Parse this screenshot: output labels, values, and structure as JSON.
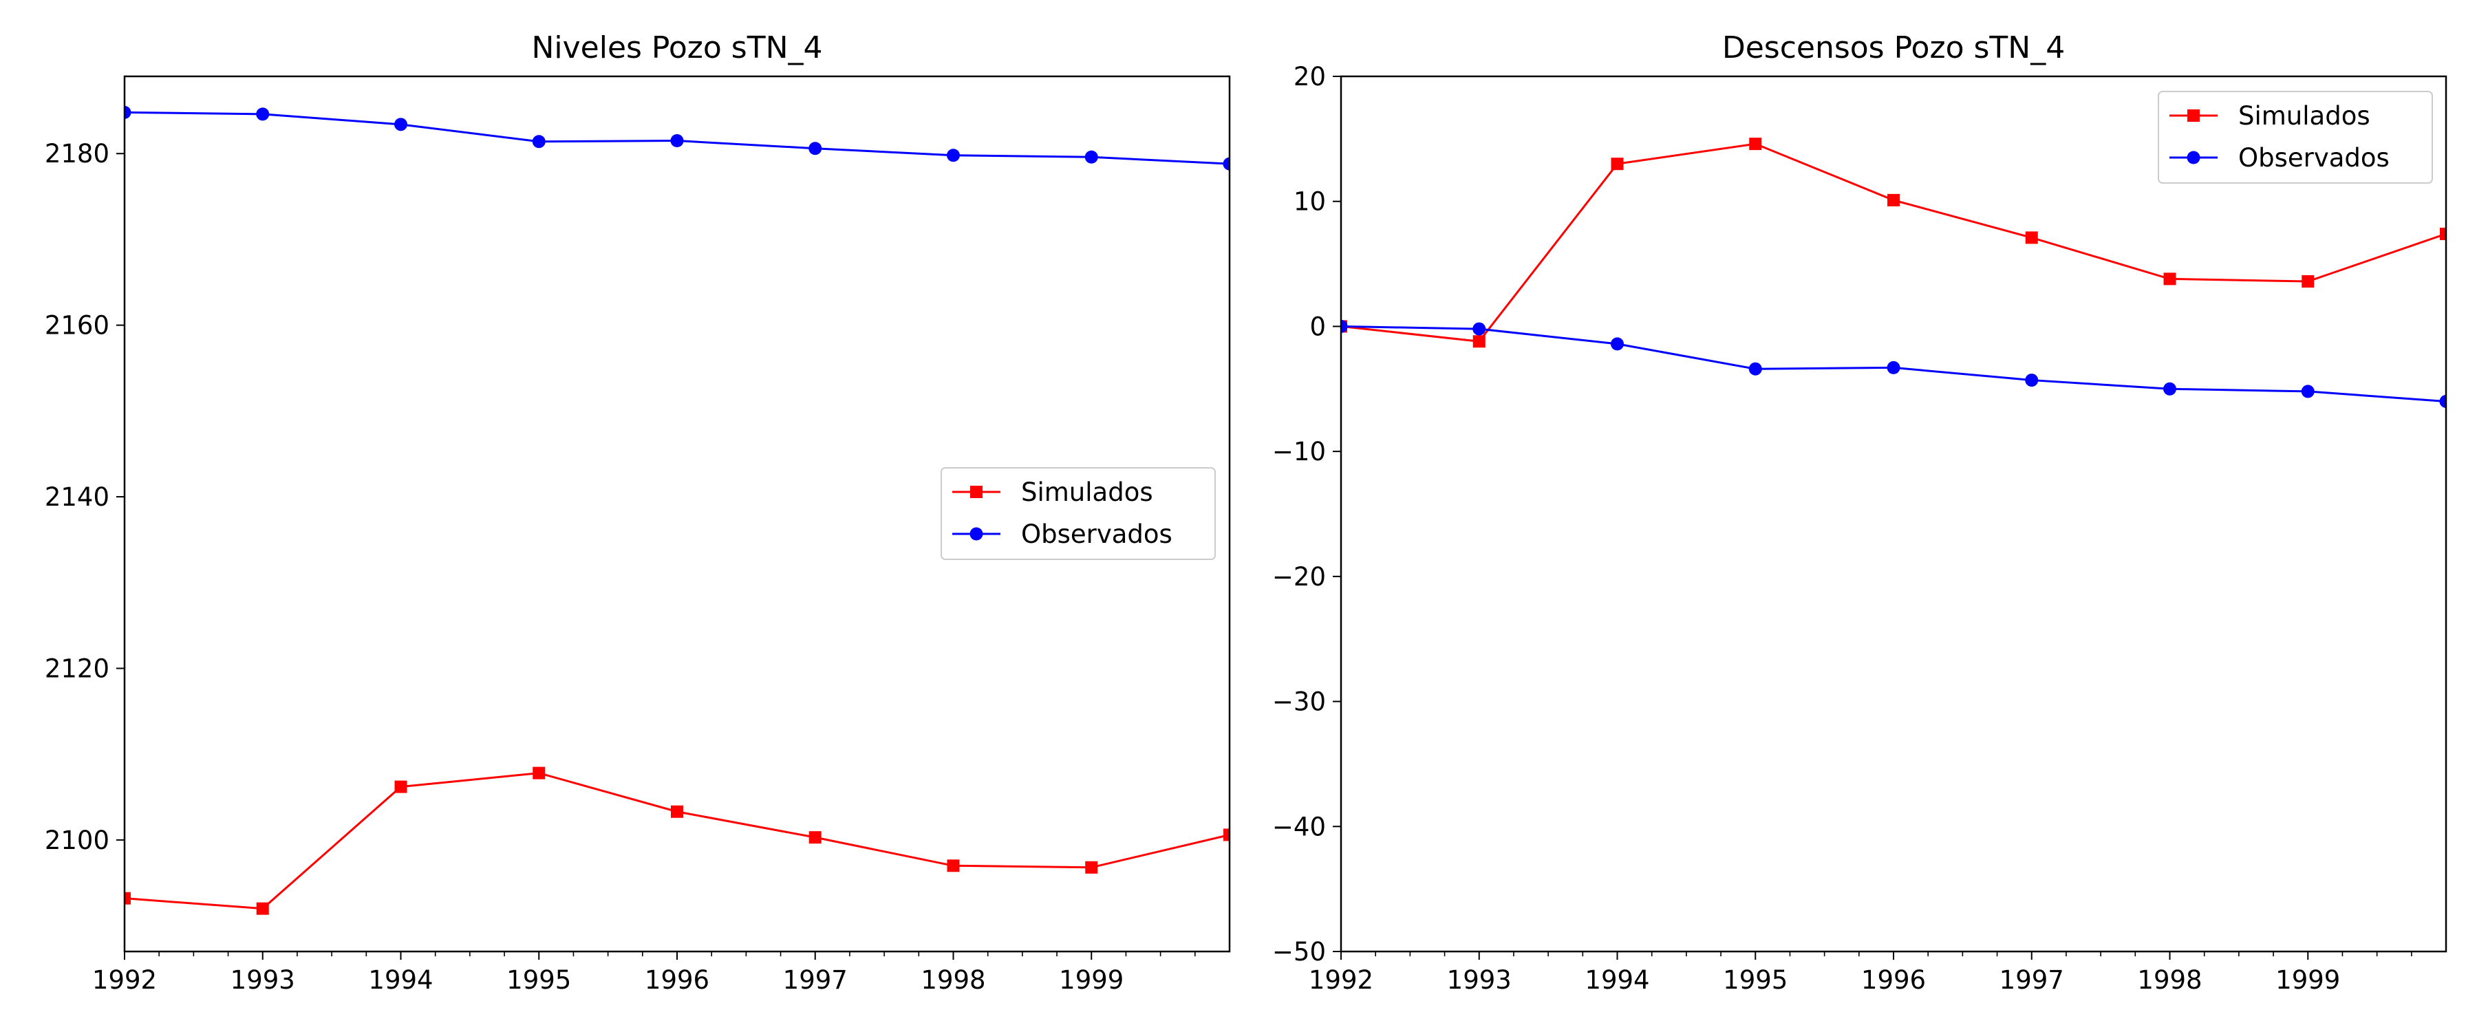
{
  "chart_data": [
    {
      "type": "line",
      "title": "Niveles Pozo sTN_4",
      "xlabel": "",
      "ylabel": "",
      "x": [
        1992.0,
        1993.0,
        1994.0,
        1995.0,
        1996.0,
        1997.0,
        1998.0,
        1999.0,
        2000.0
      ],
      "xticks": [
        1992,
        1993,
        1994,
        1995,
        1996,
        1997,
        1998,
        1999
      ],
      "xlim": [
        1992,
        2000
      ],
      "yticks": [
        2100,
        2120,
        2140,
        2160,
        2180
      ],
      "ylim": [
        2087,
        2189
      ],
      "grid": false,
      "legend_position": "center-right",
      "series": [
        {
          "name": "Simulados",
          "color": "#ff0000",
          "marker": "square",
          "values": [
            2093.2,
            2092.0,
            2106.2,
            2107.8,
            2103.3,
            2100.3,
            2097.0,
            2096.8,
            2100.6
          ]
        },
        {
          "name": "Observados",
          "color": "#0000ff",
          "marker": "circle",
          "values": [
            2184.8,
            2184.6,
            2183.4,
            2181.4,
            2181.5,
            2180.6,
            2179.8,
            2179.6,
            2178.8
          ]
        }
      ]
    },
    {
      "type": "line",
      "title": "Descensos Pozo sTN_4",
      "xlabel": "",
      "ylabel": "",
      "x": [
        1992.0,
        1993.0,
        1994.0,
        1995.0,
        1996.0,
        1997.0,
        1998.0,
        1999.0,
        2000.0
      ],
      "xticks": [
        1992,
        1993,
        1994,
        1995,
        1996,
        1997,
        1998,
        1999
      ],
      "xlim": [
        1992,
        2000
      ],
      "yticks": [
        20,
        10,
        0,
        -10,
        -20,
        -30,
        -40,
        -50
      ],
      "ylim": [
        -50,
        20
      ],
      "grid": false,
      "legend_position": "top-right",
      "series": [
        {
          "name": "Simulados",
          "color": "#ff0000",
          "marker": "square",
          "values": [
            0.0,
            -1.2,
            13.0,
            14.6,
            10.1,
            7.1,
            3.8,
            3.6,
            7.4
          ]
        },
        {
          "name": "Observados",
          "color": "#0000ff",
          "marker": "circle",
          "values": [
            0.0,
            -0.2,
            -1.4,
            -3.4,
            -3.3,
            -4.3,
            -5.0,
            -5.2,
            -6.0
          ]
        }
      ]
    }
  ]
}
